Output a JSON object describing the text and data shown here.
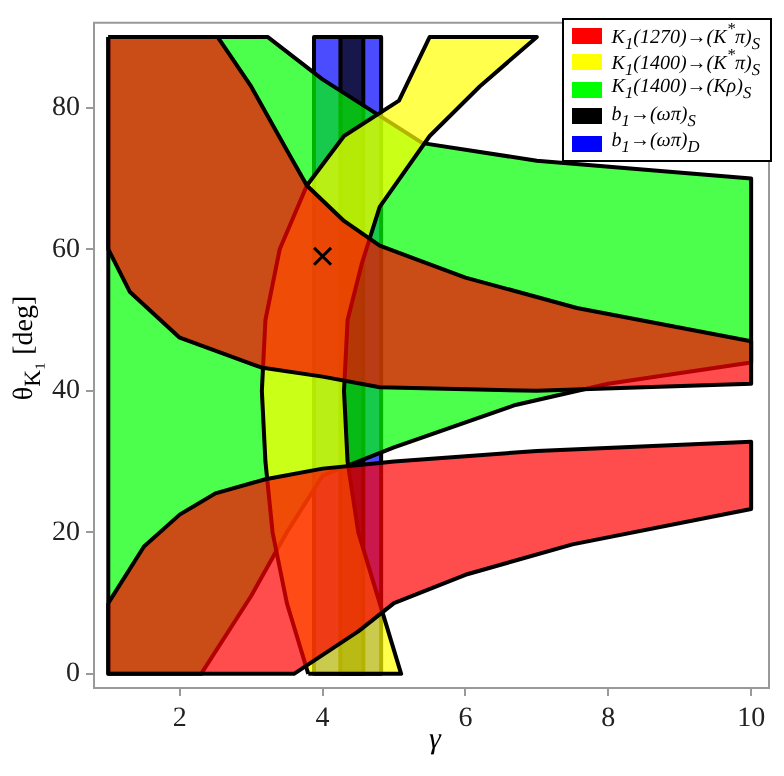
{
  "chart_data": {
    "type": "area",
    "xlabel": "γ",
    "ylabel": "θ$_{K₁}$ [deg]",
    "xlim": [
      0.8,
      10.25
    ],
    "ylim": [
      -2,
      92
    ],
    "xticks": [
      2,
      4,
      6,
      8,
      10
    ],
    "yticks": [
      0,
      20,
      40,
      60,
      80
    ],
    "grid": false,
    "legend": "top right",
    "series": [
      {
        "name": "K$_{1}$(1270)→(K$^{*}$π)$_{S}$",
        "color": "#ff0000",
        "x": [
          1,
          2.53,
          3.0,
          3.5,
          3.78,
          4.3,
          4.8,
          6,
          7.56,
          10,
          10,
          7,
          4.8,
          4,
          3.14,
          2,
          1.3,
          1,
          1,
          null,
          1,
          1.5,
          2,
          2.5,
          3.2,
          4,
          4.8,
          5,
          7,
          10,
          10,
          7.5,
          6,
          5,
          4.5,
          3.6,
          1,
          1
        ],
        "values": [
          90,
          90,
          83,
          74,
          69,
          64,
          60.5,
          56,
          51.7,
          47,
          41,
          40,
          40.5,
          42,
          43.3,
          47.5,
          54,
          60,
          90,
          null,
          10,
          18,
          22.5,
          25.5,
          27.5,
          29,
          29.8,
          30,
          31.5,
          32.8,
          23.3,
          18.3,
          14,
          10,
          6,
          0,
          0,
          10
        ]
      },
      {
        "name": "K$_{1}$(1400)→(K$^{*}$π)$_{S}$",
        "color": "#ffff00",
        "x": [
          3.8,
          3.5,
          3.3,
          3.2,
          3.15,
          3.2,
          3.4,
          3.78,
          4.3,
          5.07,
          5.5,
          7.0,
          6.2,
          5.5,
          4.8,
          4.55,
          4.35,
          4.3,
          4.35,
          4.5,
          4.8,
          5.1,
          3.8
        ],
        "values": [
          0,
          10,
          20,
          30,
          40,
          50,
          60,
          69,
          76,
          81,
          90,
          90,
          83,
          76,
          66,
          58,
          50,
          40,
          30,
          20,
          10,
          0,
          0
        ]
      },
      {
        "name": "K$_{1}$(1400)→(Kρ)$_{S}$",
        "color": "#00ff00",
        "x": [
          1,
          3.23,
          4,
          5.4,
          7,
          10,
          10,
          8,
          6.7,
          5,
          4,
          3.5,
          3,
          2.3,
          1,
          1
        ],
        "values": [
          90,
          90,
          84,
          75,
          72.5,
          70,
          44,
          41,
          38,
          32,
          28,
          20,
          11,
          0,
          0,
          90
        ]
      },
      {
        "name": "b$_{1}$→(ωπ)$_{S}$",
        "color": "#000000",
        "x": [
          4.25,
          4.57,
          4.57,
          4.25,
          4.25
        ],
        "values": [
          0,
          0,
          90,
          90,
          0
        ]
      },
      {
        "name": "b$_{1}$→(ωπ)$_{D}$",
        "color": "#0000ff",
        "x": [
          3.88,
          4.82,
          4.82,
          3.88,
          3.88
        ],
        "values": [
          0,
          0,
          90,
          90,
          0
        ]
      },
      {
        "type": "scatter",
        "marker": "cross",
        "color": "#000000",
        "x": [
          4.0
        ],
        "values": [
          59
        ]
      }
    ]
  }
}
